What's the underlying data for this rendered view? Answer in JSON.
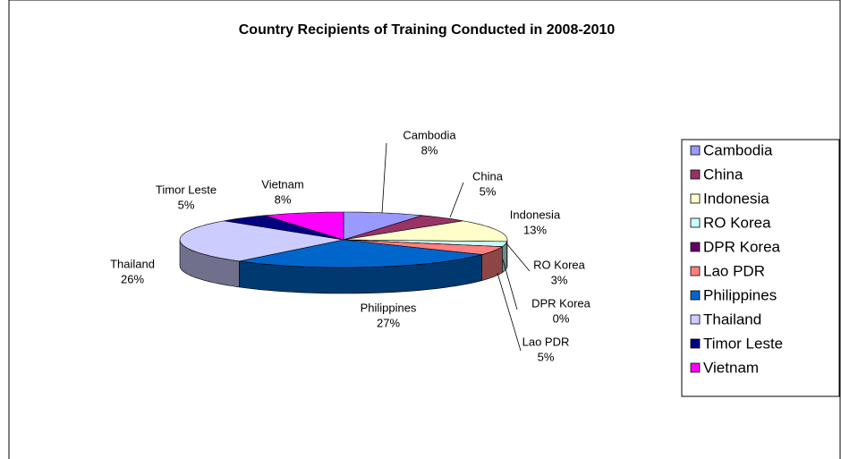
{
  "chart_data": {
    "type": "pie",
    "title": "Country Recipients of Training Conducted in 2008-2010",
    "categories": [
      "Cambodia",
      "China",
      "Indonesia",
      "RO Korea",
      "DPR Korea",
      "Lao PDR",
      "Philippines",
      "Thailand",
      "Timor Leste",
      "Vietnam"
    ],
    "values": [
      8,
      5,
      13,
      3,
      0,
      5,
      27,
      26,
      5,
      8
    ],
    "value_labels": [
      "8%",
      "5%",
      "13%",
      "3%",
      "0%",
      "5%",
      "27%",
      "26%",
      "5%",
      "8%"
    ],
    "colors": [
      "#9999FF",
      "#993366",
      "#FFFFCC",
      "#CCFFFF",
      "#660066",
      "#FF8080",
      "#0066CC",
      "#CCCCFF",
      "#000080",
      "#FF00FF"
    ],
    "legend": "right"
  }
}
